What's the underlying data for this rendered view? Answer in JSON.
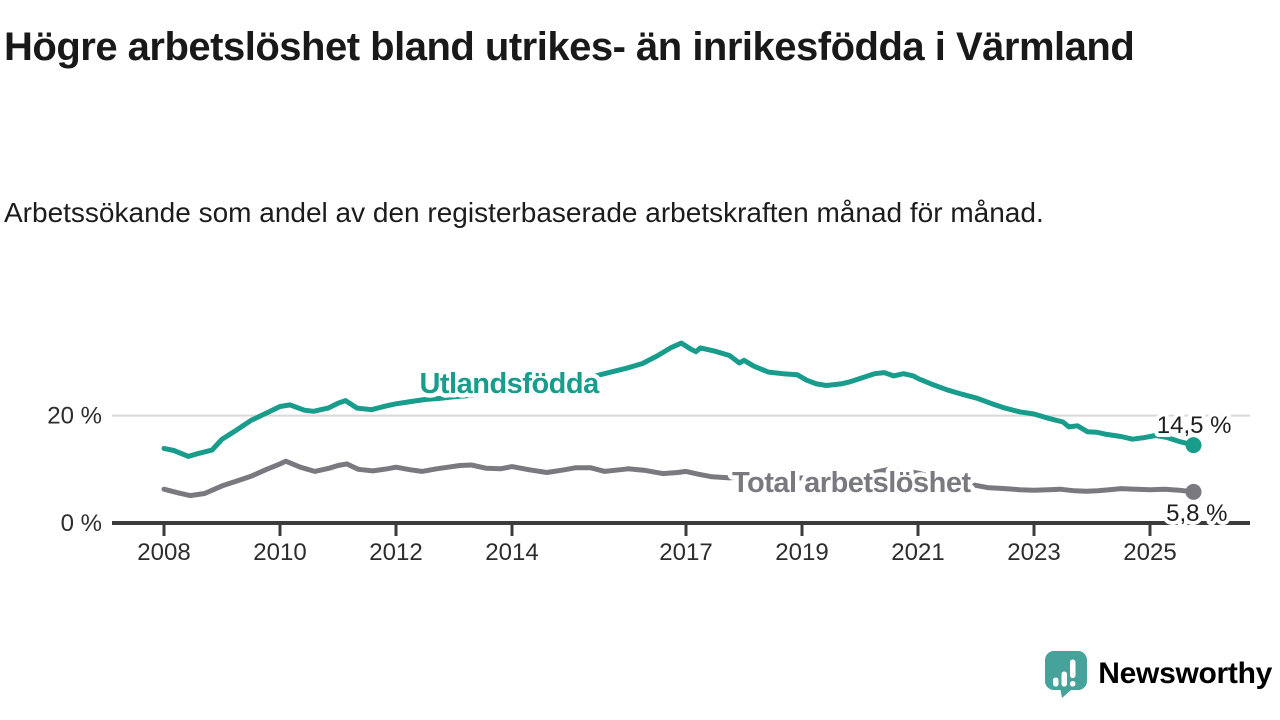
{
  "header": {
    "title": "Högre arbetslöshet bland utrikes- än inrikesfödda i Värmland",
    "subtitle": "Arbetssökande som andel av den registerbaserade arbetskraften månad för månad."
  },
  "branding": {
    "logo_text": "Newsworthy",
    "logo_color": "#46a39b",
    "logo_icon": "speech-bubble-bar-chart-icon"
  },
  "colors": {
    "background": "#ffffff",
    "axis": "#3c3c3c",
    "gridline": "#d9d9d9",
    "tick_text": "#2d2d2d",
    "annotation_text": "#1e1e1e",
    "series_utlandsfodda": "#189c8c",
    "series_total": "#7a7980"
  },
  "chart_data": {
    "type": "line",
    "x_axis": {
      "unit": "year",
      "ticks": [
        2008,
        2010,
        2012,
        2014,
        2017,
        2019,
        2021,
        2023,
        2025
      ],
      "range": [
        2008,
        2025.83
      ]
    },
    "y_axis": {
      "unit": "percent",
      "range": [
        0,
        36
      ],
      "gridlines": [
        20
      ],
      "ticks": [
        {
          "value": 0,
          "label": "0 %"
        },
        {
          "value": 20,
          "label": "20 %"
        }
      ]
    },
    "series": [
      {
        "name": "Utlandsfödda",
        "color": "#189c8c",
        "end_value": 14.5,
        "end_label": "14,5 %",
        "label_pos": {
          "x": 2013.95,
          "y": 26.1
        },
        "points": [
          [
            2008.0,
            13.9
          ],
          [
            2008.17,
            13.5
          ],
          [
            2008.42,
            12.4
          ],
          [
            2008.58,
            12.9
          ],
          [
            2008.83,
            13.6
          ],
          [
            2009.0,
            15.6
          ],
          [
            2009.25,
            17.3
          ],
          [
            2009.5,
            19.1
          ],
          [
            2009.75,
            20.4
          ],
          [
            2010.0,
            21.7
          ],
          [
            2010.17,
            22.0
          ],
          [
            2010.42,
            21.0
          ],
          [
            2010.58,
            20.8
          ],
          [
            2010.83,
            21.4
          ],
          [
            2011.0,
            22.3
          ],
          [
            2011.13,
            22.8
          ],
          [
            2011.33,
            21.4
          ],
          [
            2011.58,
            21.1
          ],
          [
            2011.83,
            21.8
          ],
          [
            2012.0,
            22.2
          ],
          [
            2012.25,
            22.6
          ],
          [
            2012.5,
            23.0
          ],
          [
            2012.75,
            23.2
          ],
          [
            2013.0,
            23.5
          ],
          [
            2013.33,
            23.8
          ],
          [
            2013.67,
            24.3
          ],
          [
            2014.0,
            24.9
          ],
          [
            2014.33,
            25.3
          ],
          [
            2014.67,
            25.8
          ],
          [
            2015.0,
            26.4
          ],
          [
            2015.33,
            27.1
          ],
          [
            2015.67,
            28.0
          ],
          [
            2016.0,
            28.9
          ],
          [
            2016.25,
            29.7
          ],
          [
            2016.5,
            31.1
          ],
          [
            2016.75,
            32.7
          ],
          [
            2016.92,
            33.5
          ],
          [
            2017.08,
            32.4
          ],
          [
            2017.17,
            31.9
          ],
          [
            2017.25,
            32.6
          ],
          [
            2017.5,
            32.0
          ],
          [
            2017.75,
            31.2
          ],
          [
            2017.92,
            29.8
          ],
          [
            2018.0,
            30.3
          ],
          [
            2018.17,
            29.2
          ],
          [
            2018.42,
            28.1
          ],
          [
            2018.67,
            27.8
          ],
          [
            2018.92,
            27.6
          ],
          [
            2019.08,
            26.6
          ],
          [
            2019.25,
            25.9
          ],
          [
            2019.42,
            25.6
          ],
          [
            2019.67,
            25.9
          ],
          [
            2019.83,
            26.3
          ],
          [
            2020.0,
            26.9
          ],
          [
            2020.25,
            27.8
          ],
          [
            2020.42,
            28.0
          ],
          [
            2020.58,
            27.4
          ],
          [
            2020.75,
            27.8
          ],
          [
            2020.92,
            27.4
          ],
          [
            2021.0,
            26.9
          ],
          [
            2021.25,
            25.8
          ],
          [
            2021.5,
            24.8
          ],
          [
            2021.75,
            24.0
          ],
          [
            2022.0,
            23.3
          ],
          [
            2022.25,
            22.3
          ],
          [
            2022.5,
            21.4
          ],
          [
            2022.75,
            20.7
          ],
          [
            2023.0,
            20.3
          ],
          [
            2023.25,
            19.5
          ],
          [
            2023.5,
            18.8
          ],
          [
            2023.6,
            17.9
          ],
          [
            2023.75,
            18.1
          ],
          [
            2023.92,
            17.0
          ],
          [
            2024.08,
            16.9
          ],
          [
            2024.25,
            16.5
          ],
          [
            2024.5,
            16.1
          ],
          [
            2024.7,
            15.6
          ],
          [
            2024.9,
            15.9
          ],
          [
            2025.1,
            16.3
          ],
          [
            2025.3,
            15.9
          ],
          [
            2025.5,
            15.2
          ],
          [
            2025.75,
            14.5
          ]
        ]
      },
      {
        "name": "Total arbetslöshet",
        "color": "#7a7980",
        "end_value": 5.8,
        "end_label": "5,8 %",
        "label_pos": {
          "x": 2019.85,
          "y": 7.6
        },
        "points": [
          [
            2008.0,
            6.3
          ],
          [
            2008.25,
            5.6
          ],
          [
            2008.45,
            5.1
          ],
          [
            2008.7,
            5.5
          ],
          [
            2009.0,
            6.9
          ],
          [
            2009.25,
            7.8
          ],
          [
            2009.5,
            8.7
          ],
          [
            2009.75,
            9.9
          ],
          [
            2010.0,
            11.0
          ],
          [
            2010.1,
            11.5
          ],
          [
            2010.35,
            10.4
          ],
          [
            2010.6,
            9.6
          ],
          [
            2010.85,
            10.2
          ],
          [
            2011.0,
            10.7
          ],
          [
            2011.15,
            11.0
          ],
          [
            2011.35,
            10.0
          ],
          [
            2011.6,
            9.7
          ],
          [
            2011.85,
            10.1
          ],
          [
            2012.0,
            10.4
          ],
          [
            2012.25,
            9.9
          ],
          [
            2012.45,
            9.6
          ],
          [
            2012.7,
            10.1
          ],
          [
            2012.9,
            10.4
          ],
          [
            2013.1,
            10.7
          ],
          [
            2013.3,
            10.8
          ],
          [
            2013.55,
            10.2
          ],
          [
            2013.8,
            10.1
          ],
          [
            2014.0,
            10.5
          ],
          [
            2014.3,
            9.9
          ],
          [
            2014.6,
            9.4
          ],
          [
            2014.9,
            9.9
          ],
          [
            2015.1,
            10.3
          ],
          [
            2015.35,
            10.3
          ],
          [
            2015.6,
            9.6
          ],
          [
            2015.85,
            9.9
          ],
          [
            2016.0,
            10.1
          ],
          [
            2016.3,
            9.8
          ],
          [
            2016.6,
            9.2
          ],
          [
            2016.85,
            9.4
          ],
          [
            2017.0,
            9.6
          ],
          [
            2017.2,
            9.1
          ],
          [
            2017.45,
            8.6
          ],
          [
            2017.75,
            8.4
          ],
          [
            2018.0,
            8.7
          ],
          [
            2018.25,
            8.3
          ],
          [
            2018.5,
            8.0
          ],
          [
            2018.75,
            8.2
          ],
          [
            2019.0,
            8.4
          ],
          [
            2019.25,
            8.1
          ],
          [
            2019.5,
            7.9
          ],
          [
            2019.75,
            8.1
          ],
          [
            2020.0,
            8.3
          ],
          [
            2020.25,
            9.4
          ],
          [
            2020.5,
            10.0
          ],
          [
            2020.75,
            9.7
          ],
          [
            2021.0,
            9.3
          ],
          [
            2021.25,
            8.6
          ],
          [
            2021.5,
            8.0
          ],
          [
            2021.75,
            7.4
          ],
          [
            2022.0,
            7.0
          ],
          [
            2022.2,
            6.6
          ],
          [
            2022.5,
            6.4
          ],
          [
            2022.75,
            6.2
          ],
          [
            2023.0,
            6.1
          ],
          [
            2023.25,
            6.2
          ],
          [
            2023.45,
            6.3
          ],
          [
            2023.7,
            6.0
          ],
          [
            2023.9,
            5.9
          ],
          [
            2024.1,
            6.0
          ],
          [
            2024.3,
            6.2
          ],
          [
            2024.5,
            6.4
          ],
          [
            2024.75,
            6.3
          ],
          [
            2025.0,
            6.2
          ],
          [
            2025.25,
            6.3
          ],
          [
            2025.5,
            6.1
          ],
          [
            2025.75,
            5.8
          ]
        ]
      }
    ]
  }
}
